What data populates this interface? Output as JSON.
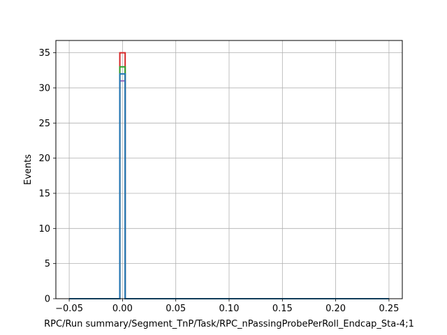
{
  "chart_data": {
    "type": "histogram",
    "title": "",
    "xlabel": "RPC/Run summary/Segment_TnP/Task/RPC_nPassingProbePerRoll_Endcap_Sta-4;1",
    "ylabel": "Events",
    "xlim": [
      -0.0625,
      0.2625
    ],
    "ylim": [
      0,
      36.75
    ],
    "grid": true,
    "x_ticks": [
      -0.05,
      0.0,
      0.05,
      0.1,
      0.15,
      0.2,
      0.25
    ],
    "x_tick_labels": [
      "−0.05",
      "0.00",
      "0.05",
      "0.10",
      "0.15",
      "0.20",
      "0.25"
    ],
    "y_ticks": [
      0,
      5,
      10,
      15,
      20,
      25,
      30,
      35
    ],
    "y_tick_labels": [
      "0",
      "5",
      "10",
      "15",
      "20",
      "25",
      "30",
      "35"
    ],
    "bin_edges": [
      -0.05,
      0.25
    ],
    "peak_bin": [
      -0.0025,
      0.0025
    ],
    "series": [
      {
        "color": "#d62728",
        "peak_value": 35
      },
      {
        "color": "#2ca02c",
        "peak_value": 33
      },
      {
        "color": "#9467bd",
        "peak_value": 31
      },
      {
        "color": "#1f77b4",
        "peak_value": 32
      }
    ]
  }
}
